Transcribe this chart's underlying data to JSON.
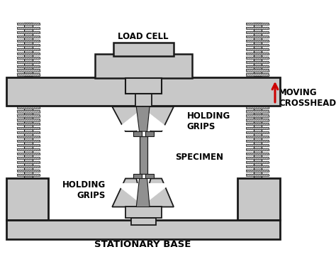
{
  "bg_color": "#ffffff",
  "gray_fill": "#c8c8c8",
  "gray_dark": "#b0b0b0",
  "outline": "#1a1a1a",
  "red_arrow": "#cc0000",
  "label_color": "#000000",
  "label_load_cell": "LOAD CELL",
  "label_holding_grips_top": "HOLDING\nGRIPS",
  "label_holding_grips_bot": "HOLDING\nGRIPS",
  "label_specimen": "SPECIMEN",
  "label_moving_crosshead": "MOVING\nCROSSHEAD",
  "label_base": "STATIONARY BASE",
  "font_size": 8.5
}
